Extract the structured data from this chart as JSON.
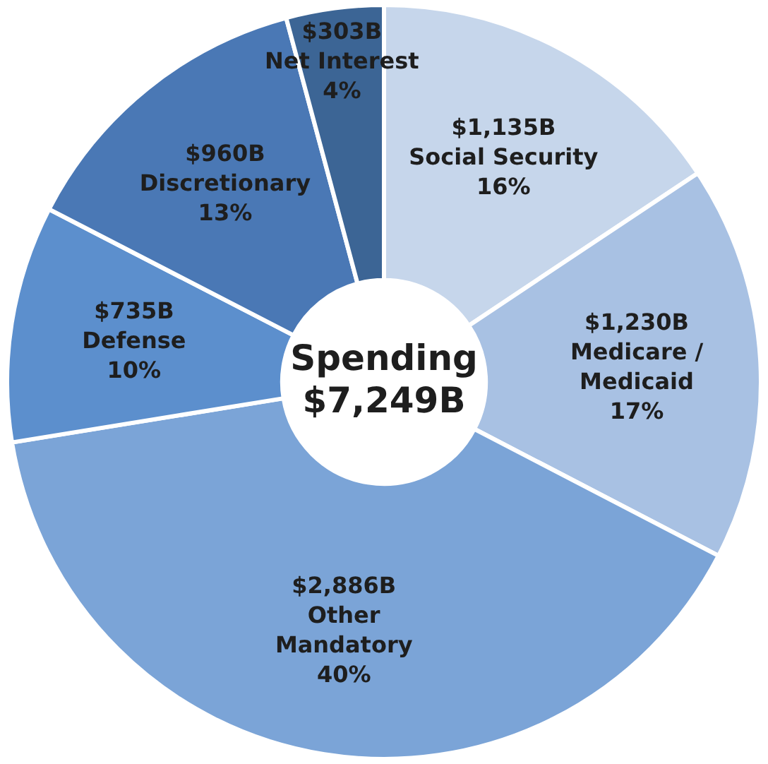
{
  "chart_data": {
    "type": "donut",
    "title": "Spending $7,249B",
    "categories": [
      "Social Security",
      "Medicare / Medicaid",
      "Other Mandatory",
      "Defense",
      "Discretionary",
      "Net Interest"
    ],
    "values": [
      1135,
      1230,
      2886,
      735,
      960,
      303
    ],
    "colors": [
      "#c6d6eb",
      "#a8c1e3",
      "#7ba4d7",
      "#5c8fcd",
      "#4a78b5",
      "#3c6595"
    ],
    "value_labels": [
      "$1,135B",
      "$1,230B",
      "$2,886B",
      "$735B",
      "$960B",
      "$303B"
    ],
    "annotations": [
      {
        "text": "16%",
        "x": "Social Security"
      },
      {
        "text": "17%",
        "x": "Medicare / Medicaid"
      },
      {
        "text": "40%",
        "x": "Other Mandatory"
      },
      {
        "text": "10%",
        "x": "Defense"
      },
      {
        "text": "13%",
        "x": "Discretionary"
      },
      {
        "text": "4%",
        "x": "Net Interest"
      }
    ],
    "legend": false
  }
}
